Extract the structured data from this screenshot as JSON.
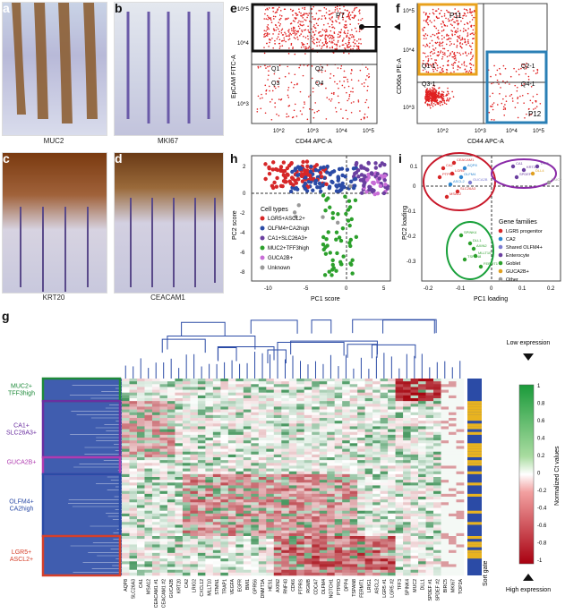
{
  "panels": {
    "a": {
      "letter": "a",
      "caption": "MUC2"
    },
    "b": {
      "letter": "b",
      "caption": "MKI67"
    },
    "c": {
      "letter": "c",
      "caption": "KRT20"
    },
    "d": {
      "letter": "d",
      "caption": "CEACAM1"
    },
    "e": {
      "letter": "e",
      "xlabel": "CD44 APC-A",
      "ylabel": "EpCAM FITC-A",
      "gate": "P7",
      "quadrants": [
        "Q1",
        "Q2",
        "Q3",
        "Q4"
      ],
      "xticks": [
        "10^2",
        "10^3",
        "10^4",
        "10^5"
      ],
      "yticks": [
        "10^3",
        "10^4",
        "10^5"
      ]
    },
    "f": {
      "letter": "f",
      "xlabel": "CD44 APC-A",
      "ylabel": "CD66a PE-A",
      "gate1": "P11",
      "gate2": "P12",
      "quadrants": [
        "Q1-1",
        "Q2-1",
        "Q3-1",
        "Q4-1"
      ],
      "xticks": [
        "10^2",
        "10^3",
        "10^4",
        "10^5"
      ],
      "yticks": [
        "10^3",
        "10^4",
        "10^5"
      ]
    },
    "h": {
      "letter": "h",
      "xlabel": "PC1 score",
      "ylabel": "PC2 score",
      "xticks": [
        "-10",
        "-5",
        "0",
        "5"
      ],
      "yticks": [
        "2",
        "0",
        "-2",
        "-4",
        "-6",
        "-8"
      ],
      "legend_title": "Cell types",
      "legend": [
        {
          "label": "LGR5+ASCL2+",
          "color": "#d62728"
        },
        {
          "label": "OLFM4+CA2high",
          "color": "#2b4ba6"
        },
        {
          "label": "CA1+SLC26A3+",
          "color": "#6b3fa0"
        },
        {
          "label": "MUC2+TFF3high",
          "color": "#2ca02c"
        },
        {
          "label": "GUCA2B+",
          "color": "#c86dd7"
        },
        {
          "label": "Unknown",
          "color": "#999999"
        }
      ]
    },
    "i": {
      "letter": "i",
      "xlabel": "PC1 loading",
      "ylabel": "PC2 loading",
      "xticks": [
        "-0.2",
        "-0.1",
        "0",
        "0.1",
        "0.2"
      ],
      "yticks": [
        "0.1",
        "0",
        "-0.1",
        "-0.2",
        "-0.3"
      ],
      "legend_title": "Gene families",
      "legend": [
        {
          "label": "LGR5 progenitor",
          "color": "#d62728"
        },
        {
          "label": "CA2",
          "color": "#2b87d1"
        },
        {
          "label": "Shared OLFM4+",
          "color": "#7b7bd1"
        },
        {
          "label": "Enterocyte",
          "color": "#6b3fa0"
        },
        {
          "label": "Goblet",
          "color": "#2ca02c"
        },
        {
          "label": "GUCA2B+",
          "color": "#e0a020"
        },
        {
          "label": "Other",
          "color": "#999999"
        }
      ],
      "labels": [
        "CA2",
        "LGR5",
        "PTPRO",
        "ASCL2",
        "OLFM4",
        "SLC26A3",
        "MSA12",
        "AQP8",
        "GUCA2B",
        "CEACAM1",
        "CA1",
        "KRT20",
        "DLL4",
        "SPDEF",
        "TFF3",
        "MUC2",
        "SPINK4",
        "DLL1",
        "MLLT10",
        "TSPAN8",
        "FERMT1",
        "AXIN2"
      ]
    },
    "g": {
      "letter": "g",
      "clusters": [
        {
          "name": "MUC2+ TFF3high",
          "color": "#1e8a3a"
        },
        {
          "name": "CA1+ SLC26A3+",
          "color": "#6b2fa0"
        },
        {
          "name": "GUCA2B+",
          "color": "#b03cb0"
        },
        {
          "name": "OLFM4+ CA2high",
          "color": "#2b4ba6"
        },
        {
          "name": "LGR5+ ASCL2+",
          "color": "#d6402a"
        }
      ],
      "genes": [
        "AQP8",
        "SLC26A3",
        "CA1",
        "MSA12",
        "CEACAM1 #1",
        "CEACAM1 #2",
        "GUCA2B",
        "KRT20",
        "CA2",
        "LRIG2",
        "CXCL12",
        "MLLT10",
        "STMN1",
        "TRAP1",
        "VEGFA",
        "EGFR",
        "BMI1",
        "GPR56",
        "DNMT3A",
        "HES1",
        "AXIN2",
        "RNF43",
        "CDK6",
        "PTPRS",
        "RGMB",
        "CDCA7",
        "OLFM4",
        "NOTCH1",
        "PTPRO",
        "DPP4",
        "TSPAN8",
        "FERMT1",
        "LRIG1",
        "ASCL2",
        "LGR5 #1",
        "LGR5 #2",
        "TFF3",
        "SPINK4",
        "MUC2",
        "DLL1",
        "SPDEF #1",
        "SPDEF #2",
        "BIRC5",
        "MKI67",
        "TOP2A"
      ],
      "sort_gate": "Sort gate",
      "colorbar": {
        "title": "Normalized Ct values",
        "top": "Low expression",
        "bottom": "High expression",
        "ticks": [
          "1",
          "0.8",
          "0.6",
          "0.4",
          "0.2",
          "0",
          "-0.2",
          "-0.4",
          "-0.6",
          "-0.8",
          "-1"
        ]
      }
    }
  }
}
